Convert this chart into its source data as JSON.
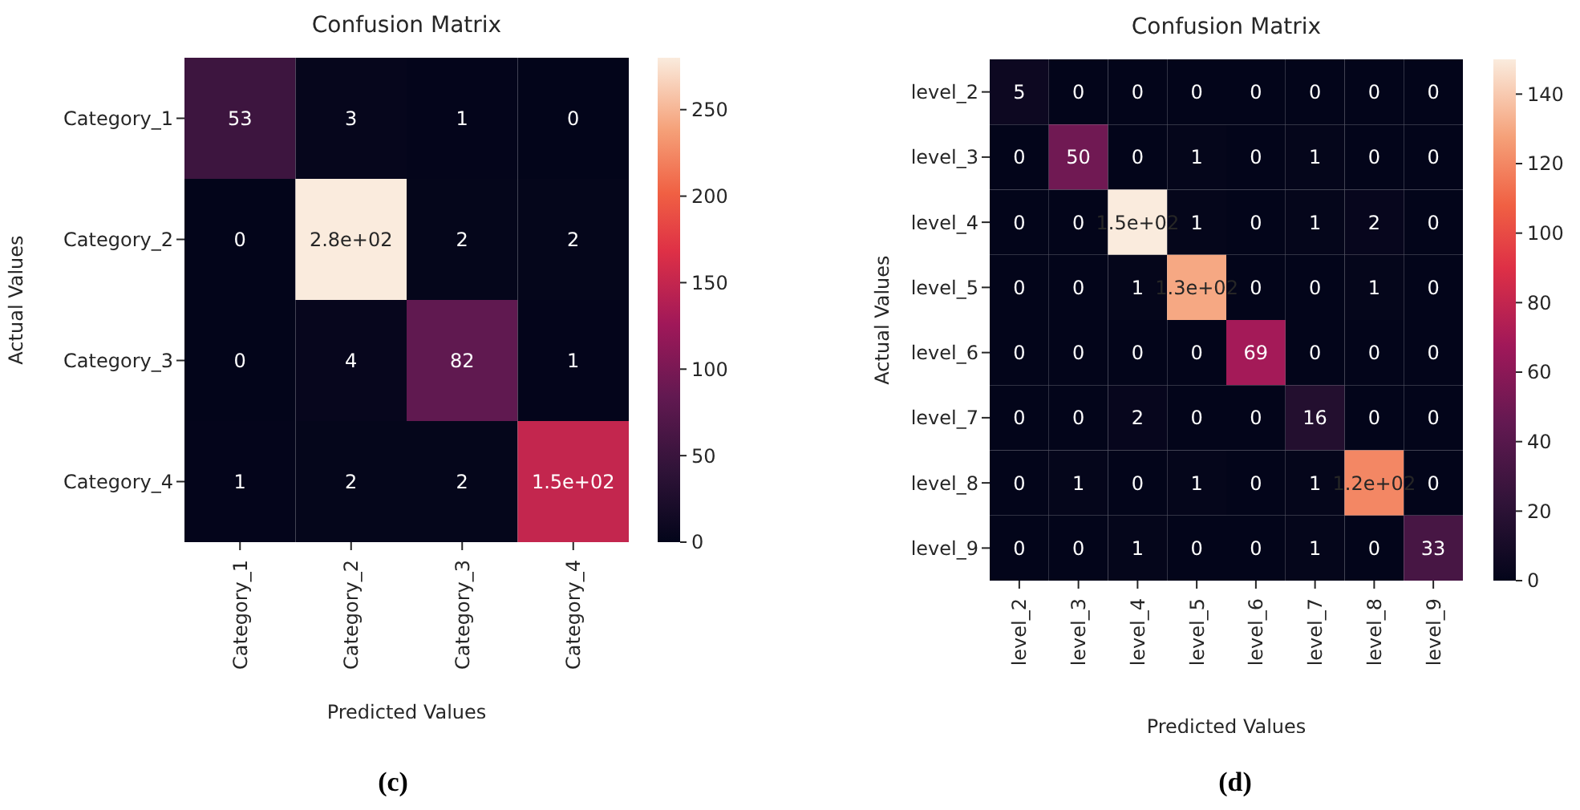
{
  "chart_data": [
    {
      "type": "heatmap",
      "title": "Confusion Matrix",
      "xlabel": "Predicted Values",
      "ylabel": "Actual Values",
      "categories": [
        "Category_1",
        "Category_2",
        "Category_3",
        "Category_4"
      ],
      "y_categories": [
        "Category_1",
        "Category_2",
        "Category_3",
        "Category_4"
      ],
      "cells": [
        [
          53,
          3,
          1,
          0
        ],
        [
          0,
          280,
          2,
          2
        ],
        [
          0,
          4,
          82,
          1
        ],
        [
          1,
          2,
          2,
          150
        ]
      ],
      "cell_labels": [
        [
          "53",
          "3",
          "1",
          "0"
        ],
        [
          "0",
          "2.8e+02",
          "2",
          "2"
        ],
        [
          "0",
          "4",
          "82",
          "1"
        ],
        [
          "1",
          "2",
          "2",
          "1.5e+02"
        ]
      ],
      "clim": [
        0,
        280
      ],
      "cticks": [
        0,
        50,
        100,
        150,
        200,
        250
      ],
      "annotations": [
        "(c)"
      ]
    },
    {
      "type": "heatmap",
      "title": "Confusion Matrix",
      "xlabel": "Predicted Values",
      "ylabel": "Actual Values",
      "categories": [
        "level_2",
        "level_3",
        "level_4",
        "level_5",
        "level_6",
        "level_7",
        "level_8",
        "level_9"
      ],
      "y_categories": [
        "level_2",
        "level_3",
        "level_4",
        "level_5",
        "level_6",
        "level_7",
        "level_8",
        "level_9"
      ],
      "cells": [
        [
          5,
          0,
          0,
          0,
          0,
          0,
          0,
          0
        ],
        [
          0,
          50,
          0,
          1,
          0,
          1,
          0,
          0
        ],
        [
          0,
          0,
          150,
          1,
          0,
          1,
          2,
          0
        ],
        [
          0,
          0,
          1,
          130,
          0,
          0,
          1,
          0
        ],
        [
          0,
          0,
          0,
          0,
          69,
          0,
          0,
          0
        ],
        [
          0,
          0,
          2,
          0,
          0,
          16,
          0,
          0
        ],
        [
          0,
          1,
          0,
          1,
          0,
          1,
          120,
          0
        ],
        [
          0,
          0,
          1,
          0,
          0,
          1,
          0,
          33
        ]
      ],
      "cell_labels": [
        [
          "5",
          "0",
          "0",
          "0",
          "0",
          "0",
          "0",
          "0"
        ],
        [
          "0",
          "50",
          "0",
          "1",
          "0",
          "1",
          "0",
          "0"
        ],
        [
          "0",
          "0",
          "1.5e+02",
          "1",
          "0",
          "1",
          "2",
          "0"
        ],
        [
          "0",
          "0",
          "1",
          "1.3e+02",
          "0",
          "0",
          "1",
          "0"
        ],
        [
          "0",
          "0",
          "0",
          "0",
          "69",
          "0",
          "0",
          "0"
        ],
        [
          "0",
          "0",
          "2",
          "0",
          "0",
          "16",
          "0",
          "0"
        ],
        [
          "0",
          "1",
          "0",
          "1",
          "0",
          "1",
          "1.2e+02",
          "0"
        ],
        [
          "0",
          "0",
          "1",
          "0",
          "0",
          "1",
          "0",
          "33"
        ]
      ],
      "clim": [
        0,
        150
      ],
      "cticks": [
        0,
        20,
        40,
        60,
        80,
        100,
        120,
        140
      ],
      "annotations": [
        "(d)"
      ]
    }
  ]
}
